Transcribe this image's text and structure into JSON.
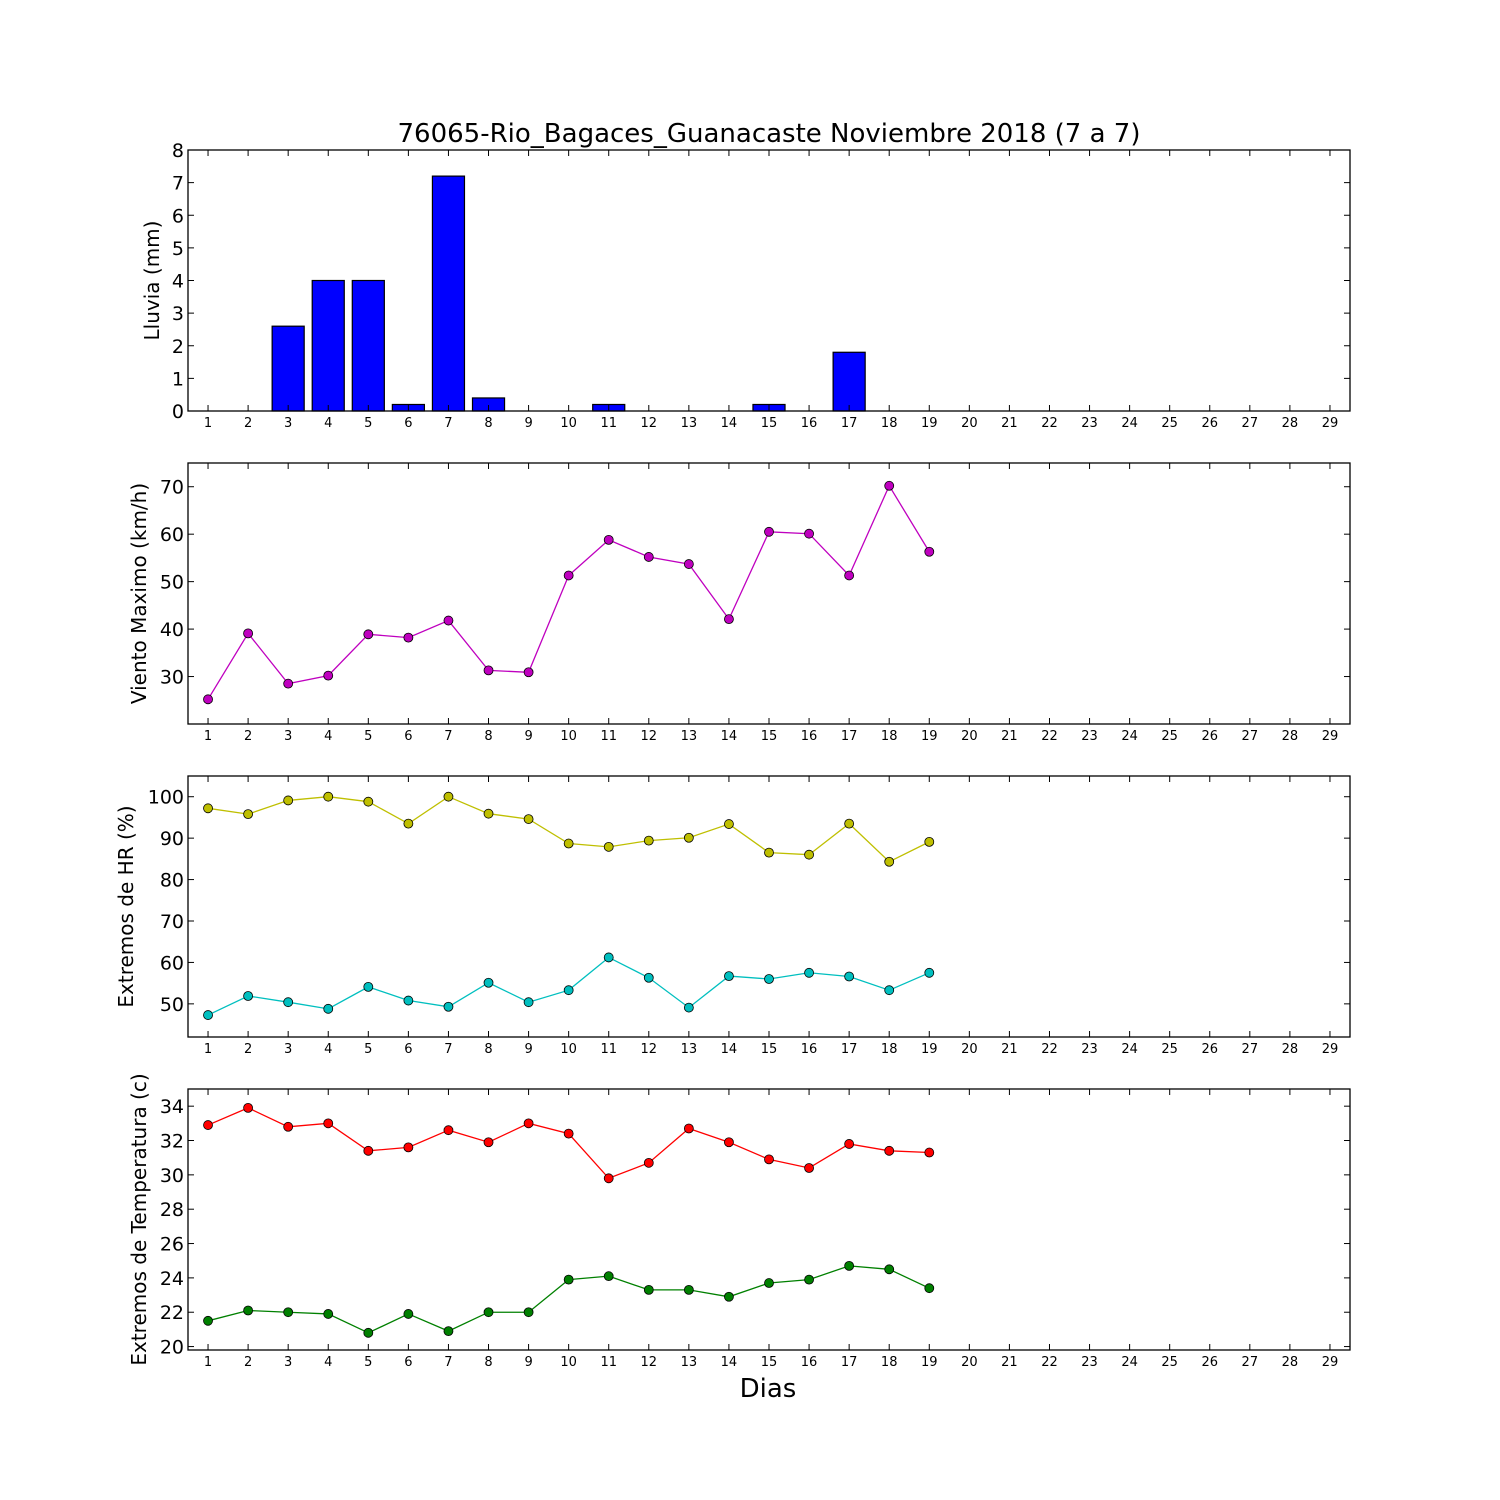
{
  "figure": {
    "title": "76065-Rio_Bagaces_Guanacaste Noviembre 2018  (7 a 7)",
    "xlabel": "Dias"
  },
  "chart_data": [
    {
      "type": "bar",
      "ylabel": "Lluvia (mm)",
      "categories": [
        1,
        2,
        3,
        4,
        5,
        6,
        7,
        8,
        9,
        10,
        11,
        12,
        13,
        14,
        15,
        16,
        17,
        18,
        19
      ],
      "values": [
        0,
        0,
        2.6,
        4.0,
        4.0,
        0.2,
        7.2,
        0.4,
        0,
        0,
        0.2,
        0,
        0,
        0,
        0.2,
        0,
        1.8,
        0,
        0
      ],
      "xlim": [
        0.5,
        29.5
      ],
      "xticks": [
        1,
        2,
        3,
        4,
        5,
        6,
        7,
        8,
        9,
        10,
        11,
        12,
        13,
        14,
        15,
        16,
        17,
        18,
        19,
        20,
        21,
        22,
        23,
        24,
        25,
        26,
        27,
        28,
        29
      ],
      "ylim": [
        0,
        8
      ],
      "yticks": [
        0,
        1,
        2,
        3,
        4,
        5,
        6,
        7,
        8
      ],
      "series": [
        {
          "color": "#0000ff"
        }
      ],
      "grid": false
    },
    {
      "type": "line",
      "ylabel": "Viento Maximo (km/h)",
      "x": [
        1,
        2,
        3,
        4,
        5,
        6,
        7,
        8,
        9,
        10,
        11,
        12,
        13,
        14,
        15,
        16,
        17,
        18,
        19
      ],
      "xlim": [
        0.5,
        29.5
      ],
      "xticks": [
        1,
        2,
        3,
        4,
        5,
        6,
        7,
        8,
        9,
        10,
        11,
        12,
        13,
        14,
        15,
        16,
        17,
        18,
        19,
        20,
        21,
        22,
        23,
        24,
        25,
        26,
        27,
        28,
        29
      ],
      "ylim": [
        20,
        75
      ],
      "yticks": [
        30,
        40,
        50,
        60,
        70
      ],
      "series": [
        {
          "color": "#bf00bf",
          "values": [
            25.2,
            39.1,
            28.5,
            30.2,
            38.9,
            38.2,
            41.8,
            31.3,
            30.9,
            51.3,
            58.8,
            55.2,
            53.7,
            42.1,
            60.5,
            60.1,
            51.3,
            70.2,
            56.3
          ]
        }
      ],
      "grid": false
    },
    {
      "type": "line",
      "ylabel": "Extremos de HR (%)",
      "x": [
        1,
        2,
        3,
        4,
        5,
        6,
        7,
        8,
        9,
        10,
        11,
        12,
        13,
        14,
        15,
        16,
        17,
        18,
        19
      ],
      "xlim": [
        0.5,
        29.5
      ],
      "xticks": [
        1,
        2,
        3,
        4,
        5,
        6,
        7,
        8,
        9,
        10,
        11,
        12,
        13,
        14,
        15,
        16,
        17,
        18,
        19,
        20,
        21,
        22,
        23,
        24,
        25,
        26,
        27,
        28,
        29
      ],
      "ylim": [
        42,
        105
      ],
      "yticks": [
        50,
        60,
        70,
        80,
        90,
        100
      ],
      "series": [
        {
          "color": "#bfbf00",
          "values": [
            97.2,
            95.8,
            99.1,
            100,
            98.8,
            93.5,
            100,
            95.9,
            94.6,
            88.7,
            87.9,
            89.4,
            90.1,
            93.4,
            86.5,
            86.0,
            93.5,
            84.3,
            89.1
          ]
        },
        {
          "color": "#00bfbf",
          "values": [
            47.3,
            51.9,
            50.4,
            48.8,
            54.1,
            50.8,
            49.3,
            55.1,
            50.4,
            53.3,
            61.2,
            56.3,
            49.1,
            56.7,
            56.0,
            57.5,
            56.6,
            53.3,
            57.5
          ]
        }
      ],
      "grid": false
    },
    {
      "type": "line",
      "ylabel": "Extremos de Temperatura (c)",
      "x": [
        1,
        2,
        3,
        4,
        5,
        6,
        7,
        8,
        9,
        10,
        11,
        12,
        13,
        14,
        15,
        16,
        17,
        18,
        19
      ],
      "xlim": [
        0.5,
        29.5
      ],
      "xticks": [
        1,
        2,
        3,
        4,
        5,
        6,
        7,
        8,
        9,
        10,
        11,
        12,
        13,
        14,
        15,
        16,
        17,
        18,
        19,
        20,
        21,
        22,
        23,
        24,
        25,
        26,
        27,
        28,
        29
      ],
      "ylim": [
        19.8,
        35
      ],
      "yticks": [
        20,
        22,
        24,
        26,
        28,
        30,
        32,
        34
      ],
      "series": [
        {
          "color": "#ff0000",
          "values": [
            32.9,
            33.9,
            32.8,
            33.0,
            31.4,
            31.6,
            32.6,
            31.9,
            33.0,
            32.4,
            29.8,
            30.7,
            32.7,
            31.9,
            30.9,
            30.4,
            31.8,
            31.4,
            31.3
          ]
        },
        {
          "color": "#008000",
          "values": [
            21.5,
            22.1,
            22.0,
            21.9,
            20.8,
            21.9,
            20.9,
            22.0,
            22.0,
            23.9,
            24.1,
            23.3,
            23.3,
            22.9,
            23.7,
            23.9,
            24.7,
            24.5,
            23.4
          ]
        }
      ],
      "grid": false
    }
  ]
}
